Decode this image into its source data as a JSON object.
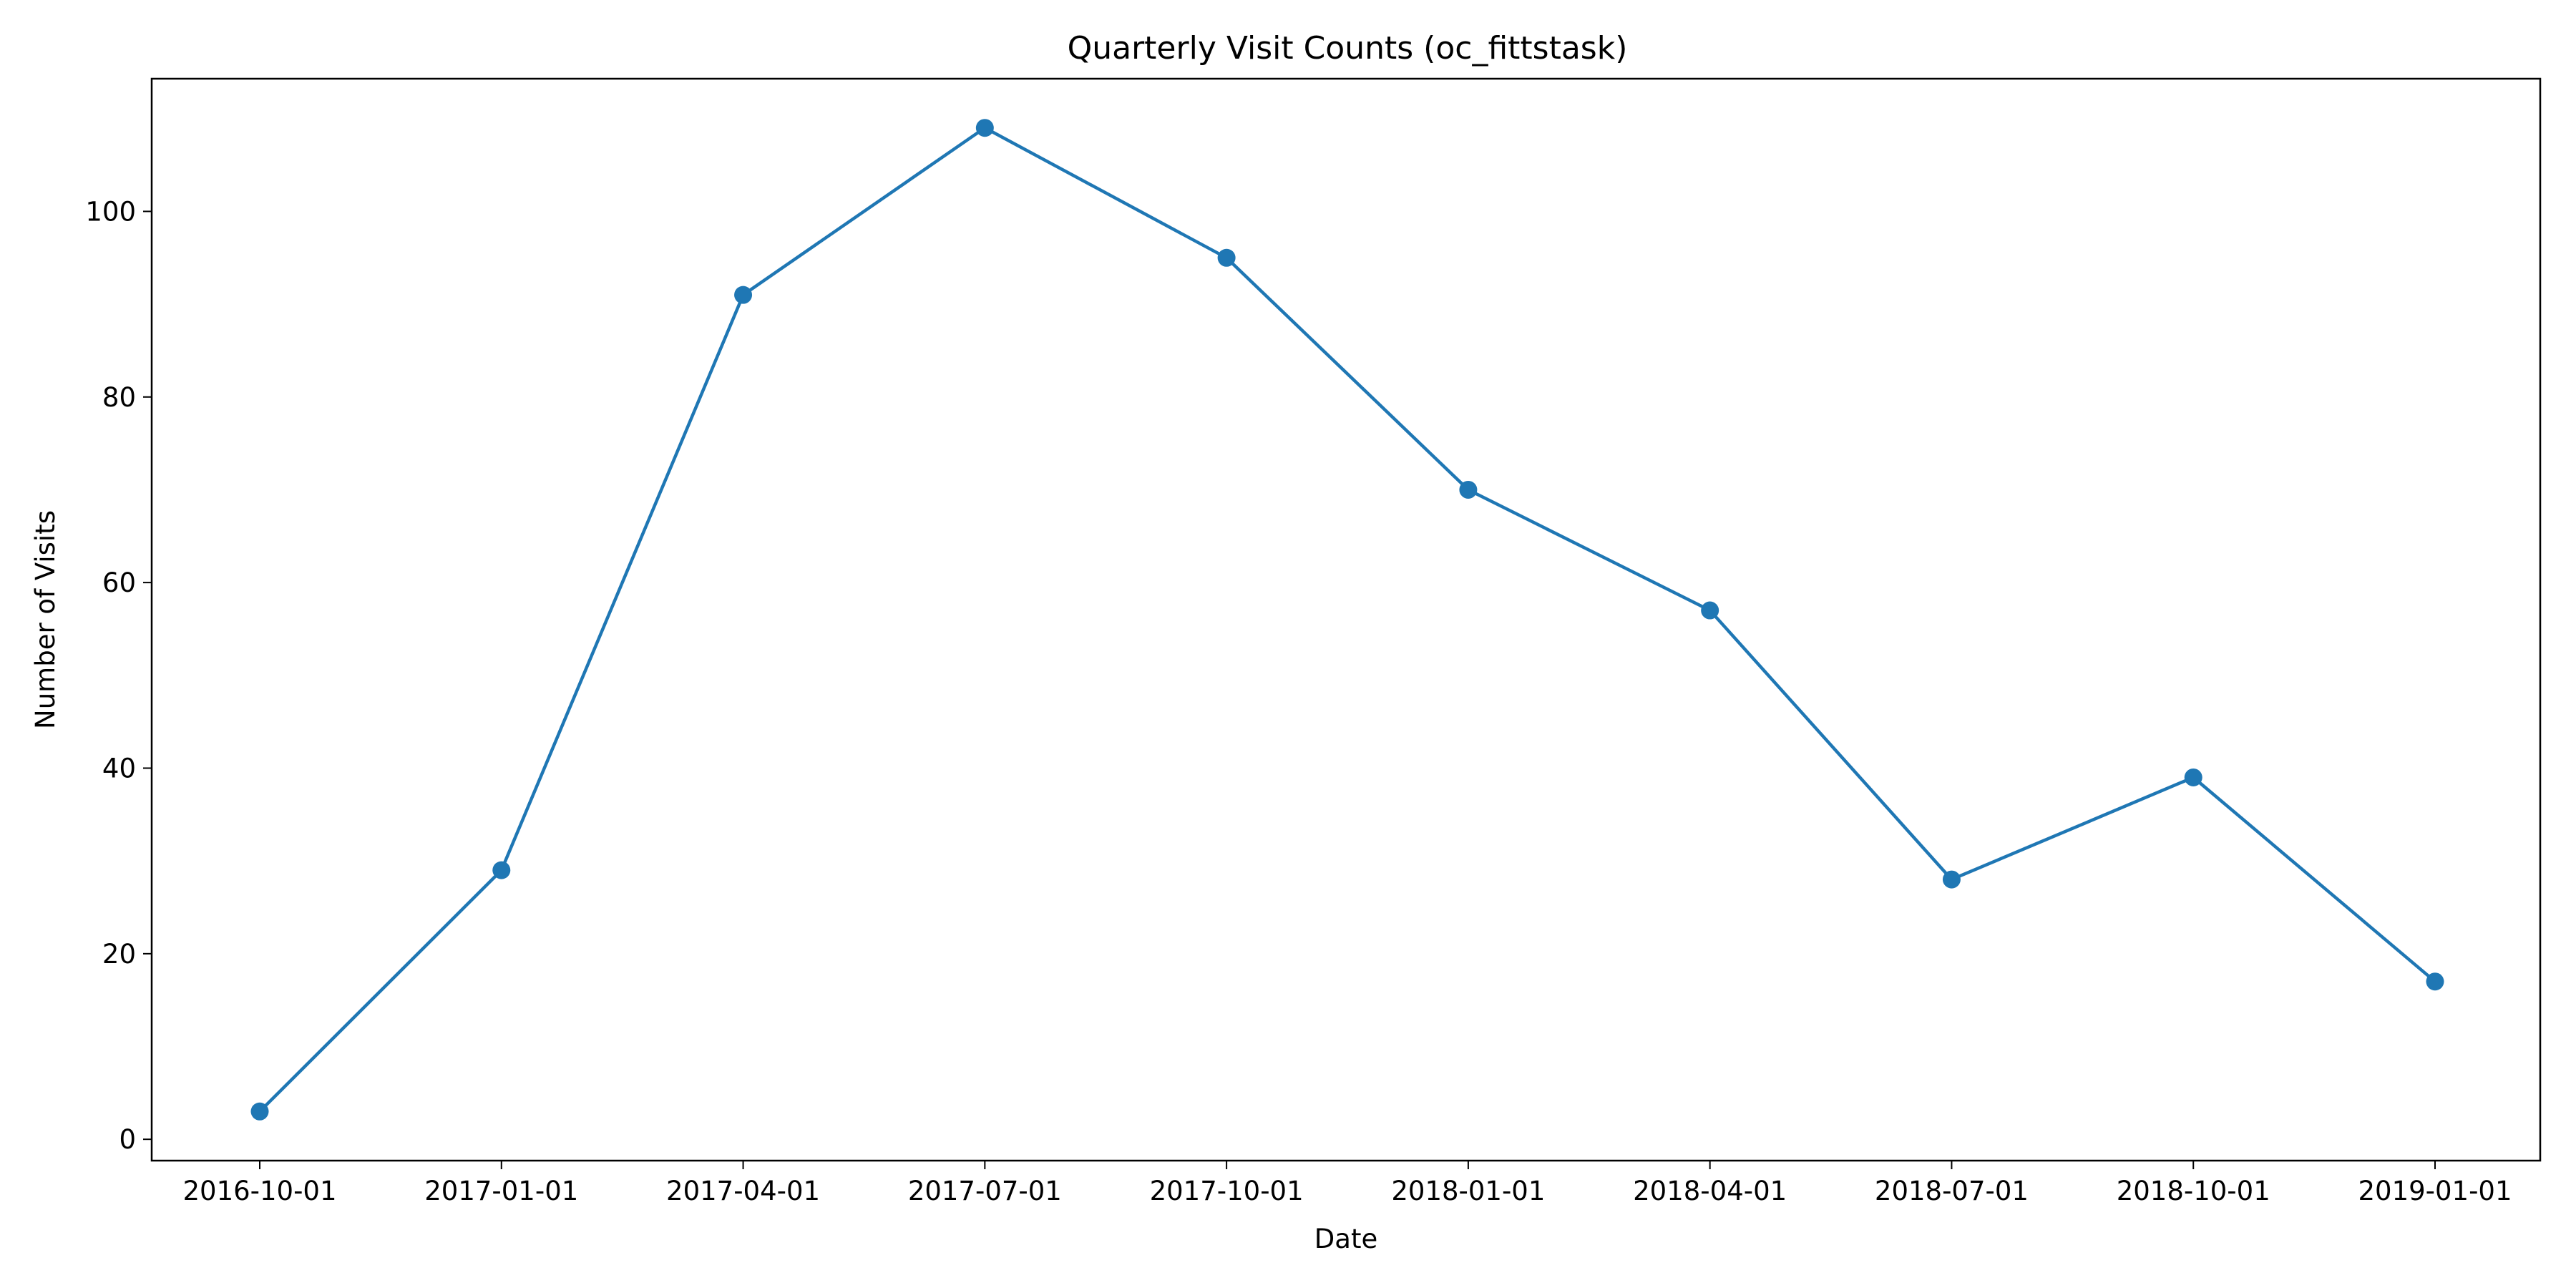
{
  "chart_data": {
    "type": "line",
    "title": "Quarterly Visit Counts (oc_fittstask)",
    "xlabel": "Date",
    "ylabel": "Number of Visits",
    "x": [
      "2016-10-01",
      "2017-01-01",
      "2017-04-01",
      "2017-07-01",
      "2017-10-01",
      "2018-01-01",
      "2018-04-01",
      "2018-07-01",
      "2018-10-01",
      "2019-01-01"
    ],
    "series": [
      {
        "values": [
          3,
          29,
          91,
          109,
          95,
          70,
          57,
          28,
          39,
          17
        ]
      }
    ],
    "ylim": [
      -2.3,
      114.3
    ],
    "yticks": [
      0,
      20,
      40,
      60,
      80,
      100
    ],
    "grid": false,
    "marker": "circle",
    "color": "#1f77b4"
  }
}
